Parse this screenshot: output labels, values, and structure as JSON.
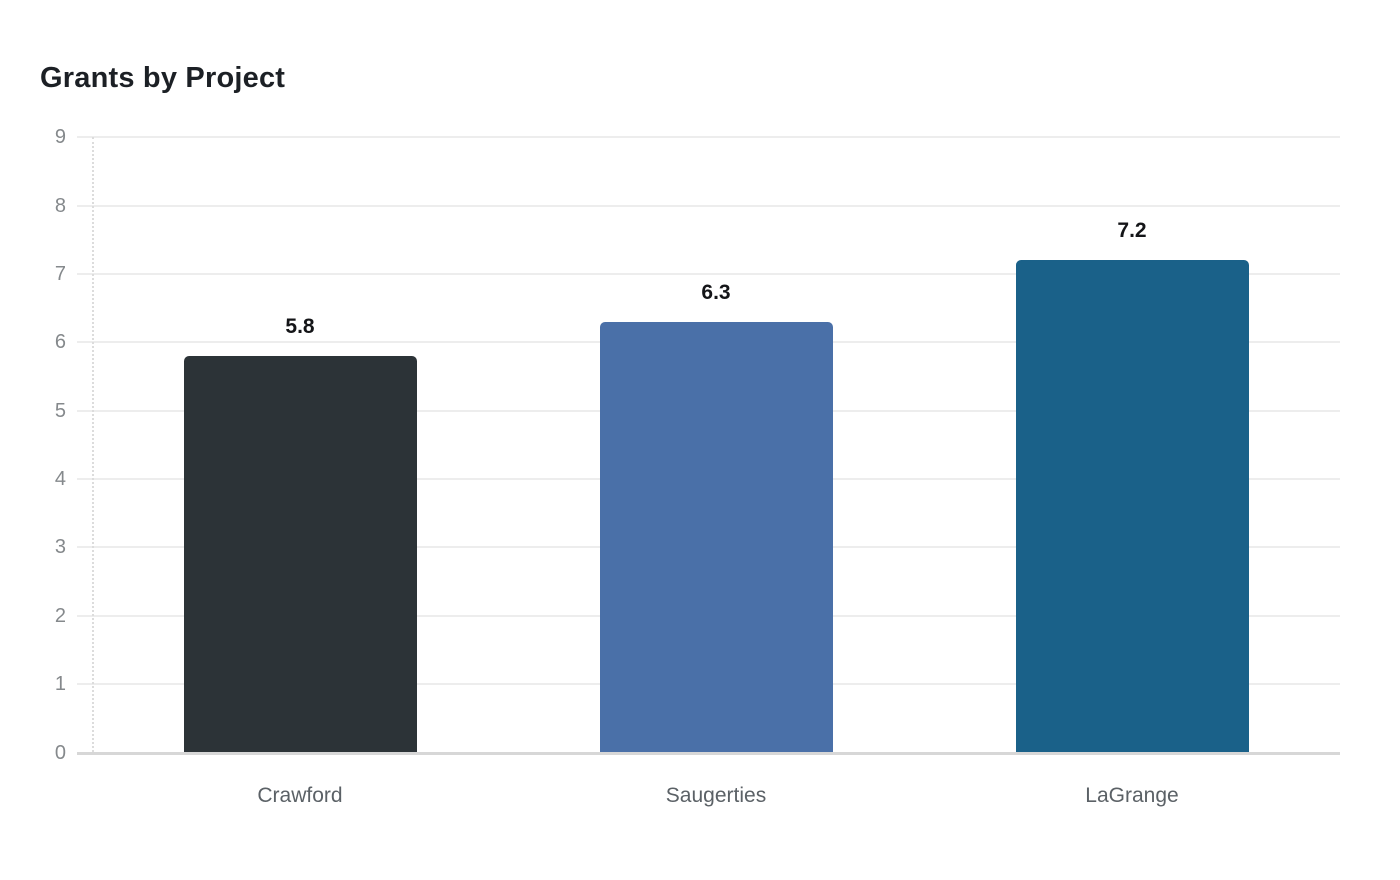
{
  "chart": {
    "title": "Grants by Project"
  },
  "chart_data": {
    "type": "bar",
    "title": "Grants by Project",
    "categories": [
      "Crawford",
      "Saugerties",
      "LaGrange"
    ],
    "values": [
      5.8,
      6.3,
      7.2
    ],
    "value_labels": [
      "5.8",
      "6.3",
      "7.2"
    ],
    "bar_colors": [
      "#2c3337",
      "#4a70a8",
      "#1a6189"
    ],
    "xlabel": "",
    "ylabel": "",
    "ylim": [
      0,
      9
    ],
    "yticks": [
      0,
      1,
      2,
      3,
      4,
      5,
      6,
      7,
      8,
      9
    ],
    "grid": true,
    "legend": false,
    "legend_position": "none"
  },
  "colors": {
    "background": "#ffffff",
    "grid_line": "#ededed",
    "axis_baseline": "#d7d7d7",
    "axis_dotted": "#dcdcdc",
    "tick_label": "#85898c",
    "category_label": "#5b6166",
    "value_label": "#141518",
    "title": "#1c2025"
  }
}
